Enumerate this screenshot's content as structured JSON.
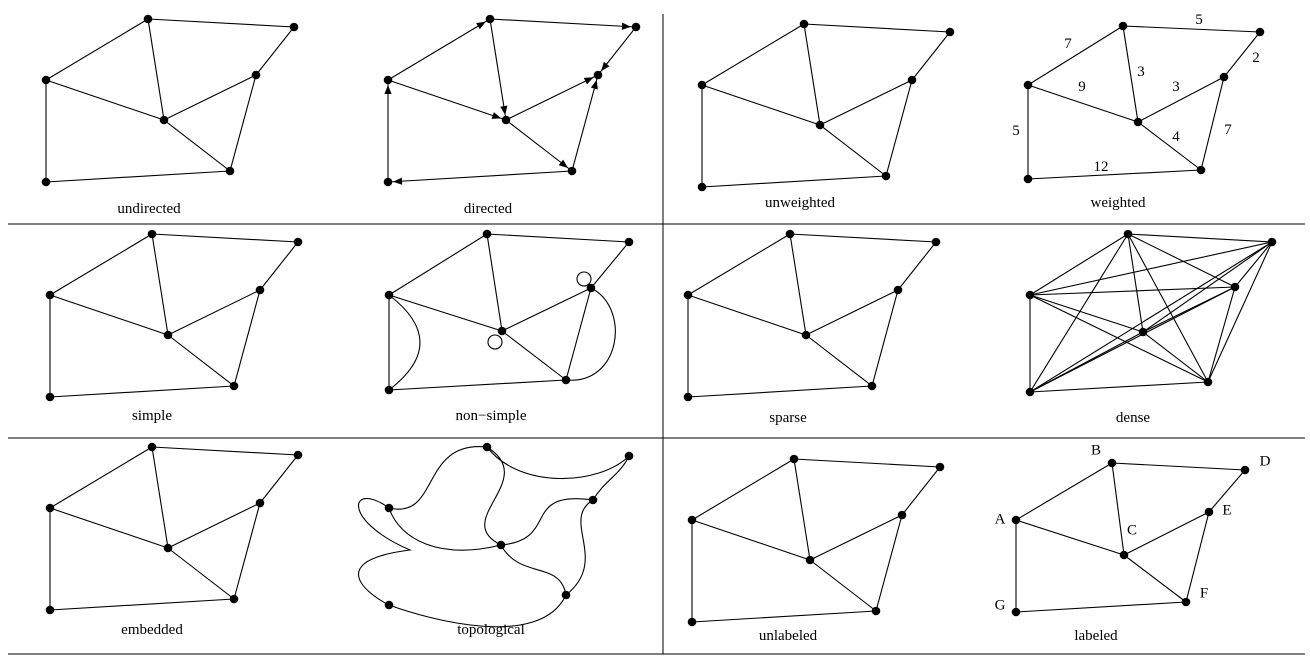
{
  "panels": [
    {
      "caption": "undirected",
      "kind": "undirected"
    },
    {
      "caption": "directed",
      "kind": "directed"
    },
    {
      "caption": "unweighted",
      "kind": "undirected"
    },
    {
      "caption": "weighted",
      "kind": "weighted",
      "weights": [
        "5",
        "7",
        "2",
        "9",
        "3",
        "3",
        "5",
        "4",
        "7",
        "12"
      ]
    },
    {
      "caption": "simple",
      "kind": "undirected"
    },
    {
      "caption": "non−simple",
      "kind": "nonsimple"
    },
    {
      "caption": "sparse",
      "kind": "undirected"
    },
    {
      "caption": "dense",
      "kind": "dense"
    },
    {
      "caption": "embedded",
      "kind": "undirected"
    },
    {
      "caption": "topological",
      "kind": "topological"
    },
    {
      "caption": "unlabeled",
      "kind": "undirected"
    },
    {
      "caption": "labeled",
      "kind": "labeled",
      "node_labels": [
        "A",
        "B",
        "C",
        "D",
        "E",
        "F",
        "G"
      ]
    }
  ]
}
